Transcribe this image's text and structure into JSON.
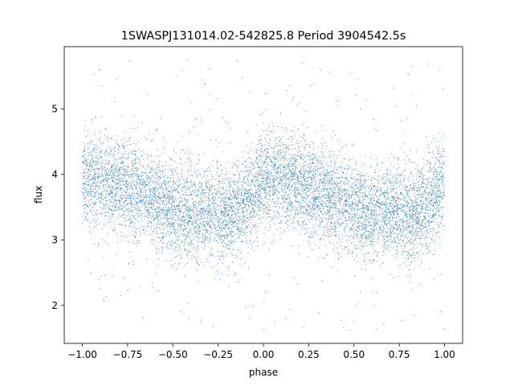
{
  "chart_data": {
    "type": "scatter",
    "title": "1SWASPJ131014.02-542825.8 Period 3904542.5s",
    "xlabel": "phase",
    "ylabel": "flux",
    "xlim": [
      -1.1,
      1.1
    ],
    "ylim": [
      1.42,
      5.95
    ],
    "xticks": [
      -1.0,
      -0.75,
      -0.5,
      -0.25,
      0.0,
      0.25,
      0.5,
      0.75,
      1.0
    ],
    "xtick_labels": [
      "−1.00",
      "−0.75",
      "−0.50",
      "−0.25",
      "0.00",
      "0.25",
      "0.50",
      "0.75",
      "1.00"
    ],
    "yticks": [
      2,
      3,
      4,
      5
    ],
    "ytick_labels": [
      "2",
      "3",
      "4",
      "5"
    ],
    "grid": false,
    "marker_color": "#1f77b4",
    "series": [
      {
        "profile": {
          "x": [
            -1.0,
            -0.9,
            -0.8,
            -0.7,
            -0.6,
            -0.5,
            -0.4,
            -0.3,
            -0.2,
            -0.1,
            0.0,
            0.1,
            0.2,
            0.3,
            0.4,
            0.5,
            0.6,
            0.7,
            0.8,
            0.9,
            1.0
          ],
          "y_center": [
            3.95,
            3.9,
            3.85,
            3.75,
            3.6,
            3.45,
            3.4,
            3.45,
            3.35,
            3.55,
            3.9,
            3.95,
            3.85,
            3.75,
            3.6,
            3.45,
            3.4,
            3.45,
            3.35,
            3.55,
            3.9
          ],
          "y_spread": 0.35
        },
        "outlier_range": [
          1.6,
          5.75
        ]
      }
    ]
  }
}
